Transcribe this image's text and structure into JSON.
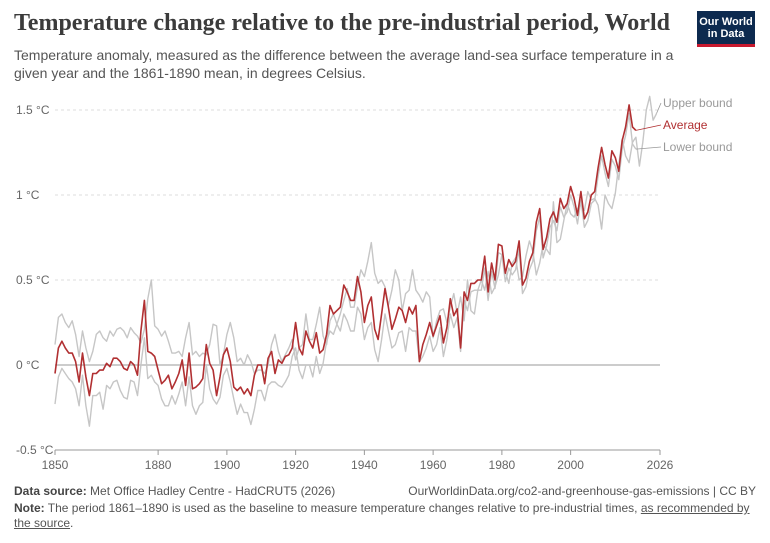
{
  "header": {
    "title": "Temperature change relative to the pre-industrial period, World",
    "subtitle": "Temperature anomaly, measured as the difference between the average land-sea surface temperature in a given year and the 1861-1890 mean, in degrees Celsius."
  },
  "logo": {
    "line1": "Our World",
    "line2": "in Data"
  },
  "footer": {
    "source_label": "Data source:",
    "source_text": "Met Office Hadley Centre - HadCRUT5 (2026)",
    "url_license": "OurWorldinData.org/co2-and-greenhouse-gas-emissions | CC BY",
    "note_label": "Note:",
    "note_text": "The period 1861–1890 is used as the baseline to measure temperature changes relative to pre-industrial times,",
    "note_link": "as recommended by the source",
    "note_end": "."
  },
  "colors": {
    "average": "#b13032",
    "bounds": "#c6c6c6",
    "grid": "#dddddd",
    "zero": "#bbbbbb"
  },
  "chart_data": {
    "type": "line",
    "xlim": [
      1850,
      2026
    ],
    "ylim": [
      -0.5,
      1.5
    ],
    "x_ticks": [
      "1850",
      "1880",
      "1900",
      "1920",
      "1940",
      "1960",
      "1980",
      "2000",
      "2026"
    ],
    "x_tick_values": [
      1850,
      1880,
      1900,
      1920,
      1940,
      1960,
      1980,
      2000,
      2026
    ],
    "y_ticks": [
      "-0.5 °C",
      "0 °C",
      "0.5 °C",
      "1 °C",
      "1.5 °C"
    ],
    "y_tick_values": [
      -0.5,
      0,
      0.5,
      1,
      1.5
    ],
    "grid": "horizontal dashed",
    "x_start": 1850,
    "series": [
      {
        "name": "Upper bound",
        "values": [
          0.12,
          0.28,
          0.3,
          0.25,
          0.22,
          0.26,
          0.18,
          0.05,
          0.2,
          0.1,
          0.02,
          0.08,
          0.18,
          0.2,
          0.16,
          0.14,
          0.2,
          0.17,
          0.21,
          0.22,
          0.2,
          0.16,
          0.22,
          0.19,
          0.17,
          0.13,
          0.21,
          0.39,
          0.5,
          0.23,
          0.21,
          0.17,
          0.2,
          0.14,
          0.07,
          0.07,
          0.08,
          0.05,
          0.16,
          0.25,
          0.06,
          0.08,
          0.05,
          0.07,
          0.06,
          0.12,
          0.24,
          0.23,
          0.0,
          0.06,
          0.18,
          0.25,
          0.16,
          0.02,
          0.04,
          0.0,
          0.06,
          0.02,
          -0.05,
          -0.03,
          -0.03,
          -0.05,
          0.0,
          0.12,
          0.18,
          0.08,
          0.02,
          0.06,
          0.1,
          0.15,
          0.03,
          0.1,
          0.12,
          0.3,
          0.15,
          0.15,
          0.24,
          0.34,
          0.17,
          0.12,
          0.26,
          0.3,
          0.24,
          0.3,
          0.38,
          0.45,
          0.34,
          0.34,
          0.46,
          0.56,
          0.52,
          0.61,
          0.72,
          0.54,
          0.48,
          0.5,
          0.46,
          0.35,
          0.44,
          0.56,
          0.5,
          0.32,
          0.42,
          0.44,
          0.56,
          0.44,
          0.41,
          0.37,
          0.43,
          0.4,
          0.16,
          0.26,
          0.32,
          0.33,
          0.25,
          0.34,
          0.42,
          0.3,
          0.4,
          0.26,
          0.5,
          0.32,
          0.3,
          0.44,
          0.5,
          0.44,
          0.55,
          0.42,
          0.46,
          0.53,
          0.65,
          0.55,
          0.48,
          0.6,
          0.63,
          0.5,
          0.52,
          0.64,
          0.73,
          0.67,
          0.53,
          0.6,
          0.71,
          0.68,
          0.65,
          0.96,
          0.72,
          0.74,
          0.85,
          0.95,
          0.89,
          0.87,
          0.92,
          0.94,
          0.91,
          1.02,
          0.97,
          0.98,
          0.94,
          0.8,
          1.0,
          0.95,
          0.92,
          1.01,
          1.18,
          1.33,
          1.23,
          1.19,
          1.31,
          1.34,
          1.17,
          1.31,
          1.5,
          1.58,
          1.44,
          1.48
        ]
      },
      {
        "name": "Average",
        "values": [
          -0.05,
          0.1,
          0.14,
          0.1,
          0.07,
          0.07,
          0.02,
          -0.1,
          0.07,
          -0.07,
          -0.18,
          -0.05,
          -0.05,
          -0.03,
          -0.03,
          0.01,
          -0.01,
          0.04,
          0.04,
          0.02,
          -0.02,
          -0.03,
          0.02,
          0.0,
          -0.06,
          0.2,
          0.38,
          0.08,
          0.07,
          0.05,
          -0.03,
          -0.11,
          -0.09,
          -0.06,
          -0.14,
          -0.1,
          -0.05,
          0.03,
          -0.12,
          0.07,
          -0.14,
          -0.13,
          -0.11,
          -0.08,
          0.12,
          0.01,
          -0.03,
          -0.18,
          -0.07,
          0.06,
          0.1,
          0.02,
          -0.13,
          -0.15,
          -0.13,
          -0.17,
          -0.14,
          -0.18,
          -0.06,
          0.0,
          0.0,
          -0.11,
          0.04,
          0.08,
          -0.05,
          0.03,
          0.01,
          0.05,
          0.06,
          0.1,
          0.25,
          0.1,
          0.06,
          0.2,
          0.14,
          0.1,
          0.19,
          0.07,
          0.09,
          0.18,
          0.35,
          0.3,
          0.32,
          0.34,
          0.47,
          0.43,
          0.38,
          0.38,
          0.52,
          0.43,
          0.25,
          0.35,
          0.4,
          0.21,
          0.15,
          0.3,
          0.45,
          0.34,
          0.21,
          0.27,
          0.34,
          0.32,
          0.25,
          0.34,
          0.3,
          0.35,
          0.02,
          0.12,
          0.18,
          0.25,
          0.17,
          0.23,
          0.29,
          0.13,
          0.22,
          0.39,
          0.29,
          0.33,
          0.1,
          0.43,
          0.38,
          0.48,
          0.48,
          0.5,
          0.5,
          0.64,
          0.43,
          0.6,
          0.5,
          0.71,
          0.7,
          0.54,
          0.62,
          0.58,
          0.61,
          0.73,
          0.47,
          0.51,
          0.61,
          0.66,
          0.84,
          0.92,
          0.68,
          0.75,
          0.86,
          0.9,
          0.84,
          0.98,
          0.92,
          0.95,
          1.05,
          0.98,
          0.88,
          1.02,
          0.86,
          0.9,
          1.0,
          1.02,
          1.16,
          1.28,
          1.18,
          1.1,
          1.26,
          1.22,
          1.14,
          1.32,
          1.4,
          1.53,
          1.4,
          1.38
        ]
      },
      {
        "name": "Lower bound",
        "values": [
          -0.23,
          -0.07,
          -0.02,
          -0.05,
          -0.08,
          -0.1,
          -0.14,
          -0.24,
          -0.06,
          -0.24,
          -0.36,
          -0.18,
          -0.18,
          -0.16,
          -0.26,
          -0.12,
          -0.14,
          -0.1,
          -0.09,
          -0.15,
          -0.19,
          -0.2,
          -0.09,
          -0.1,
          -0.18,
          0.0,
          0.16,
          -0.08,
          -0.06,
          -0.1,
          -0.12,
          -0.2,
          -0.24,
          -0.24,
          -0.18,
          -0.23,
          -0.17,
          -0.1,
          -0.24,
          -0.07,
          -0.24,
          -0.29,
          -0.24,
          -0.22,
          0.0,
          -0.14,
          -0.2,
          -0.23,
          -0.19,
          -0.06,
          -0.02,
          -0.1,
          -0.2,
          -0.29,
          -0.23,
          -0.28,
          -0.28,
          -0.35,
          -0.26,
          -0.15,
          -0.15,
          -0.21,
          -0.12,
          -0.1,
          -0.1,
          -0.12,
          -0.13,
          -0.1,
          -0.06,
          0.05,
          0.1,
          -0.03,
          -0.08,
          0.0,
          0.0,
          -0.07,
          0.05,
          -0.05,
          0.01,
          0.14,
          0.2,
          0.18,
          0.24,
          0.2,
          0.3,
          0.26,
          0.2,
          0.2,
          0.34,
          0.3,
          0.15,
          0.22,
          0.25,
          0.09,
          0.02,
          0.15,
          0.3,
          0.2,
          0.1,
          0.12,
          0.19,
          0.2,
          0.08,
          0.22,
          0.2,
          0.2,
          0.02,
          0.05,
          0.1,
          0.17,
          0.08,
          0.12,
          0.22,
          0.05,
          0.15,
          0.3,
          0.22,
          0.28,
          0.08,
          0.38,
          0.32,
          0.43,
          0.44,
          0.44,
          0.44,
          0.57,
          0.38,
          0.55,
          0.45,
          0.66,
          0.65,
          0.49,
          0.57,
          0.53,
          0.56,
          0.68,
          0.42,
          0.46,
          0.56,
          0.61,
          0.79,
          0.87,
          0.63,
          0.7,
          0.81,
          0.85,
          0.79,
          0.93,
          0.87,
          0.9,
          1.0,
          0.93,
          0.83,
          0.97,
          0.81,
          0.85,
          0.95,
          0.97,
          1.11,
          1.23,
          1.13,
          1.05,
          1.21,
          1.17,
          1.09,
          1.27,
          1.35,
          1.48,
          1.3,
          1.27
        ]
      }
    ]
  }
}
